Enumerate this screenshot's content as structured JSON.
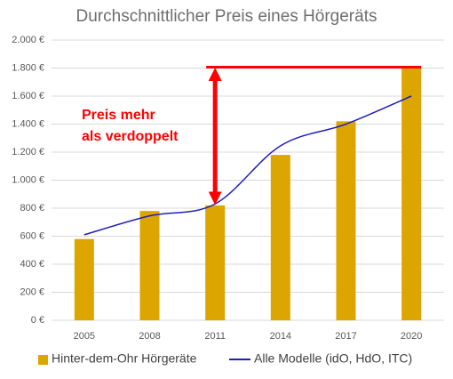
{
  "chart_data": {
    "type": "bar_line",
    "title": "Durchschnittlicher Preis eines Hörgeräts",
    "categories": [
      "2005",
      "2008",
      "2011",
      "2014",
      "2017",
      "2020"
    ],
    "series": [
      {
        "name": "Hinter-dem-Ohr Hörgeräte",
        "type": "bar",
        "color": "#dca500",
        "values": [
          580,
          780,
          820,
          1180,
          1420,
          1800
        ]
      },
      {
        "name": "Alle Modelle (idO, HdO, ITC)",
        "type": "line",
        "color": "#1f1fbf",
        "values": [
          610,
          745,
          830,
          1245,
          1400,
          1600
        ]
      }
    ],
    "annotation": [
      "Preis mehr",
      "als verdoppelt"
    ],
    "ylim": [
      0,
      2000
    ],
    "yticks": [
      {
        "value": 0,
        "label": "0 €"
      },
      {
        "value": 200,
        "label": "200 €"
      },
      {
        "value": 400,
        "label": "400 €"
      },
      {
        "value": 600,
        "label": "600 €"
      },
      {
        "value": 800,
        "label": "800 €"
      },
      {
        "value": 1000,
        "label": "1.000 €"
      },
      {
        "value": 1200,
        "label": "1.200 €"
      },
      {
        "value": 1400,
        "label": "1.400 €"
      },
      {
        "value": 1600,
        "label": "1.600 €"
      },
      {
        "value": 1800,
        "label": "1.800 €"
      },
      {
        "value": 2000,
        "label": "2.000 €"
      }
    ],
    "grid": true
  }
}
